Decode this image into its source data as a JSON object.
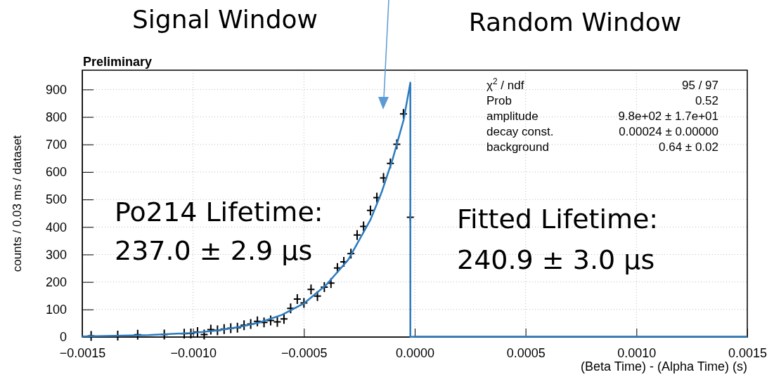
{
  "chart_data": {
    "type": "scatter",
    "xlabel": "(Beta Time) - (Alpha Time) (s)",
    "ylabel": "counts / 0.03 ms / dataset",
    "annotations": [
      "Signal Window",
      "Random Window",
      "Preliminary",
      "χ$^{2}$ / ndf",
      "95 / 97",
      "Prob",
      "0.52",
      "amplitude",
      "9.8e+02 ± 1.7e+01",
      "decay const.",
      "0.00024 ± 0.00000",
      "background",
      "0.64 ± 0.02",
      "Po214 Lifetime:",
      "237.0 ± 2.9 μs",
      "Fitted Lifetime:",
      "240.9 ± 3.0 μs"
    ],
    "xlim": [
      -0.0015,
      0.0015
    ],
    "ylim": [
      0,
      970
    ],
    "xticks": [
      {
        "value": -0.0015,
        "label": "−0.0015"
      },
      {
        "value": -0.001,
        "label": "−0.0010"
      },
      {
        "value": -0.0005,
        "label": "−0.0005"
      },
      {
        "value": 0,
        "label": "0.0000"
      },
      {
        "value": 0.0005,
        "label": "0.0005"
      },
      {
        "value": 0.001,
        "label": "0.0010"
      },
      {
        "value": 0.0015,
        "label": "0.0015"
      }
    ],
    "yticks": [
      0,
      100,
      200,
      300,
      400,
      500,
      600,
      700,
      800,
      900
    ],
    "grid": true,
    "series": [
      {
        "marker": "cross",
        "color": "#000000",
        "x": [
          -0.00146,
          -0.00134,
          -0.00125,
          -0.00113,
          -0.00104,
          -0.00101,
          -0.00098,
          -0.00095,
          -0.00092,
          -0.00089,
          -0.00086,
          -0.00083,
          -0.0008,
          -0.00077,
          -0.00074,
          -0.00071,
          -0.00068,
          -0.00065,
          -0.00062,
          -0.00059,
          -0.00056,
          -0.00053,
          -0.0005,
          -0.000468,
          -0.000439,
          -0.000408,
          -0.000378,
          -0.000349,
          -0.00032,
          -0.000288,
          -0.00026,
          -0.000231,
          -0.0002,
          -0.000171,
          -0.000141,
          -0.00011,
          -8.1e-05,
          -5.1e-05,
          -2e-05
        ],
        "values": [
          4,
          5,
          8,
          9,
          12,
          13,
          18,
          9,
          27,
          24,
          29,
          32,
          34,
          43,
          47,
          57,
          53,
          60,
          55,
          66,
          104,
          138,
          124,
          173,
          149,
          181,
          196,
          251,
          273,
          303,
          371,
          402,
          460,
          507,
          578,
          631,
          701,
          811,
          435
        ]
      },
      {
        "type": "line",
        "marker": "none",
        "color": "#2b7bbf",
        "x": [
          -0.0015,
          -0.0012,
          -0.001,
          -0.0009,
          -0.0008,
          -0.0007,
          -0.0006,
          -0.0005,
          -0.0004,
          -0.0003,
          -0.0002,
          -0.00015,
          -0.0001,
          -5e-05,
          -2e-05,
          -2e-05,
          0,
          0.0015
        ],
        "values": [
          2,
          7,
          15,
          23,
          35,
          53,
          80,
          122,
          189,
          281,
          426,
          525,
          646,
          790,
          925,
          0,
          1,
          1
        ]
      }
    ]
  }
}
